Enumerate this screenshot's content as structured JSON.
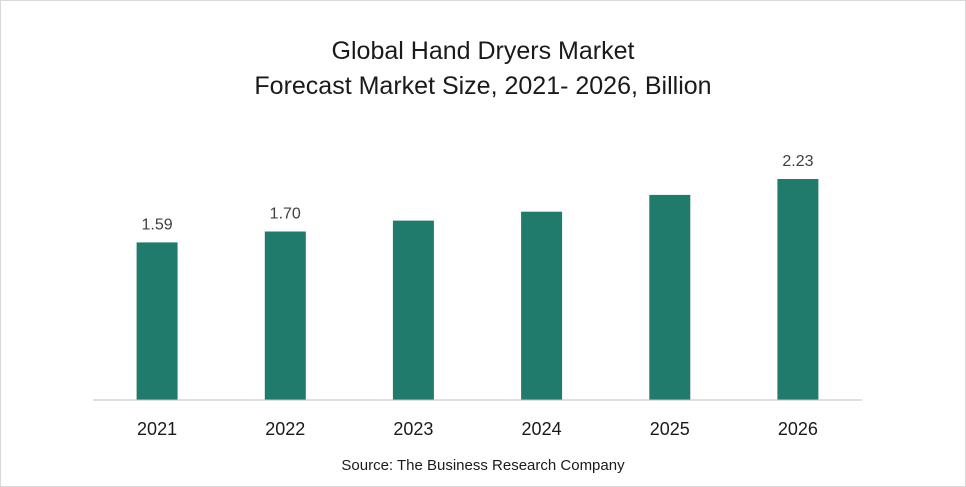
{
  "chart_data": {
    "type": "bar",
    "title_lines": [
      "Global Hand Dryers Market",
      "Forecast Market Size, 2021- 2026, Billion"
    ],
    "categories": [
      "2021",
      "2022",
      "2023",
      "2024",
      "2025",
      "2026"
    ],
    "values": [
      1.59,
      1.7,
      1.81,
      1.9,
      2.07,
      2.23
    ],
    "data_labels": [
      "1.59",
      "1.70",
      "",
      "",
      "",
      "2.23"
    ],
    "xlabel": "",
    "ylabel": "",
    "ylim": [
      0,
      2.23
    ],
    "grid": false,
    "legend": "none",
    "source": "Source: The Business Research Company",
    "bar_color": "#217b6d"
  }
}
